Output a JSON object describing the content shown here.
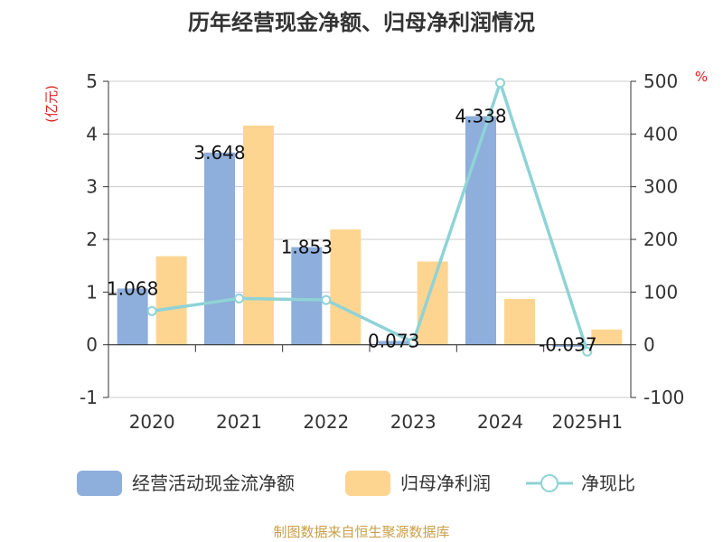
{
  "chart_data": {
    "type": "bar",
    "title": "历年经营现金净额、归母净利润情况",
    "categories": [
      "2020",
      "2021",
      "2022",
      "2023",
      "2024",
      "2025H1"
    ],
    "y_left": {
      "unit": "(亿元)",
      "lim": [
        -1,
        5
      ],
      "ticks": [
        -1,
        0,
        1,
        2,
        3,
        4,
        5
      ]
    },
    "y_right": {
      "unit": "%",
      "lim": [
        -100,
        500
      ],
      "ticks": [
        -100,
        0,
        100,
        200,
        300,
        400,
        500
      ]
    },
    "grid": true,
    "legend_position": "bottom",
    "series": [
      {
        "name": "经营活动现金流净额",
        "type": "bar",
        "axis": "left",
        "color": "#8eaedb",
        "values": [
          1.068,
          3.648,
          1.853,
          0.073,
          4.338,
          -0.037
        ],
        "labels": [
          "1.068",
          "3.648",
          "1.853",
          "0.073",
          "4.338",
          "-0.037"
        ]
      },
      {
        "name": "归母净利润",
        "type": "bar",
        "axis": "left",
        "color": "#fdd591",
        "values": [
          1.68,
          4.16,
          2.19,
          1.58,
          0.87,
          0.29
        ]
      },
      {
        "name": "净现比",
        "type": "line",
        "axis": "right",
        "color": "#8fd3d6",
        "values": [
          64,
          88,
          85,
          5,
          497,
          -13
        ]
      }
    ]
  },
  "footer": {
    "source": "制图数据来自恒生聚源数据库"
  }
}
